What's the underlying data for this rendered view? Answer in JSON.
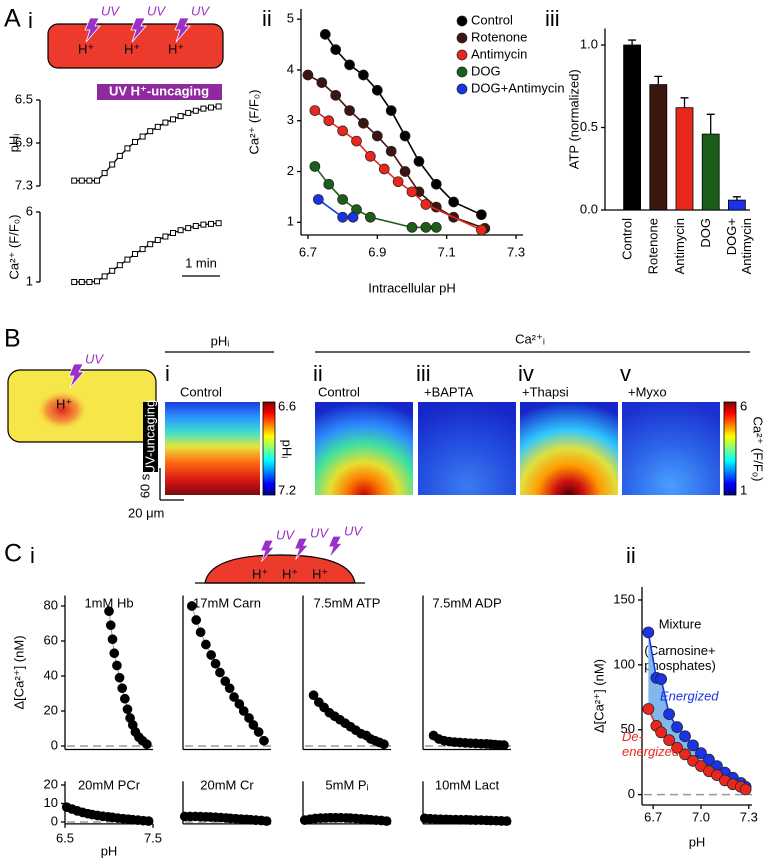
{
  "figure": {
    "panel_labels": [
      "A",
      "B",
      "C"
    ],
    "sub_labels": {
      "a": [
        "i",
        "ii",
        "iii"
      ],
      "b": [
        "i",
        "ii",
        "iii",
        "iv",
        "v"
      ],
      "c": [
        "i",
        "ii"
      ]
    },
    "uv": "UV",
    "h": "H⁺",
    "b_headers": [
      "pHᵢ",
      "Ca²⁺ᵢ"
    ],
    "b_images": [
      "Control",
      "Control",
      "+BAPTA",
      "+Thapsi",
      "+Myxo"
    ],
    "b_colorbars": [
      {
        "top": 6.6,
        "bottom": 7.2,
        "label": "pHᵢ"
      },
      {
        "top": 6,
        "bottom": 1,
        "label": "Ca²⁺ (F/F₀)"
      }
    ],
    "b_scale": {
      "time": "60 s",
      "length": "20 μm",
      "stimulus": "UV-uncaging"
    }
  },
  "chart_data": [
    {
      "type": "line",
      "ylabel": "pHᵢ",
      "annotation": "UV H⁺-uncaging",
      "x": [
        0,
        0.2,
        0.4,
        0.6,
        0.8,
        1.0,
        1.2,
        1.4,
        1.6,
        1.8,
        2.0,
        2.2,
        2.4,
        2.6,
        2.8,
        3.0,
        3.2,
        3.4,
        3.6,
        3.8
      ],
      "series": [
        {
          "color": "#000000",
          "values": [
            7.25,
            7.25,
            7.25,
            7.25,
            7.18,
            7.1,
            7.02,
            6.95,
            6.89,
            6.84,
            6.79,
            6.75,
            6.71,
            6.68,
            6.65,
            6.62,
            6.6,
            6.58,
            6.57,
            6.56
          ]
        }
      ],
      "xlim": [
        -0.9,
        4.1
      ],
      "ylim": [
        7.3,
        6.5
      ],
      "yticks": [
        6.5,
        6.9,
        7.3
      ]
    },
    {
      "type": "line",
      "ylabel": "Ca²⁺ (F/F₀)",
      "scalebar": {
        "value": 1,
        "label": "1 min"
      },
      "x": [
        0,
        0.2,
        0.4,
        0.6,
        0.8,
        1.0,
        1.2,
        1.4,
        1.6,
        1.8,
        2.0,
        2.2,
        2.4,
        2.6,
        2.8,
        3.0,
        3.2,
        3.4,
        3.6,
        3.8
      ],
      "series": [
        {
          "color": "#000000",
          "values": [
            1,
            1,
            1,
            1.05,
            1.4,
            1.8,
            2.2,
            2.6,
            3,
            3.35,
            3.7,
            4,
            4.25,
            4.5,
            4.7,
            4.85,
            5,
            5.1,
            5.15,
            5.2
          ]
        }
      ],
      "xlim": [
        -0.9,
        4.1
      ],
      "ylim": [
        1,
        6
      ],
      "yticks": [
        1,
        6
      ]
    },
    {
      "type": "scatter",
      "line": true,
      "xlabel": "Intracellular pH",
      "ylabel": "Ca²⁺ (F/F₀)",
      "legend": "upper right",
      "xlim": [
        6.68,
        7.32
      ],
      "xticks": [
        6.7,
        6.9,
        7.1,
        7.3
      ],
      "ylim": [
        0.75,
        5.2
      ],
      "yticks": [
        1,
        2,
        3,
        4,
        5
      ],
      "series": [
        {
          "name": "Control",
          "color": "#000000",
          "x": [
            6.75,
            6.78,
            6.82,
            6.86,
            6.9,
            6.94,
            6.98,
            7.02,
            7.07,
            7.12,
            7.2
          ],
          "values": [
            4.7,
            4.4,
            4.1,
            3.9,
            3.6,
            3.2,
            2.7,
            2.2,
            1.75,
            1.4,
            1.15
          ]
        },
        {
          "name": "Rotenone",
          "color": "#3b1510",
          "x": [
            6.7,
            6.74,
            6.78,
            6.82,
            6.86,
            6.9,
            6.94,
            6.98,
            7.02,
            7.07,
            7.12,
            7.21
          ],
          "values": [
            3.9,
            3.75,
            3.5,
            3.2,
            2.95,
            2.7,
            2.4,
            2.0,
            1.6,
            1.3,
            1.1,
            0.88
          ]
        },
        {
          "name": "Antimycin",
          "color": "#e8281e",
          "x": [
            6.72,
            6.76,
            6.8,
            6.84,
            6.88,
            6.92,
            6.96,
            7.0,
            7.04,
            7.2
          ],
          "values": [
            3.2,
            3.0,
            2.8,
            2.6,
            2.3,
            2.05,
            1.8,
            1.6,
            1.35,
            0.85
          ]
        },
        {
          "name": "DOG",
          "color": "#1a5e1a",
          "x": [
            6.72,
            6.76,
            6.8,
            6.84,
            6.88,
            7.0,
            7.04,
            7.07
          ],
          "values": [
            2.1,
            1.75,
            1.45,
            1.25,
            1.1,
            0.9,
            0.9,
            0.9
          ]
        },
        {
          "name": "DOG+Antimycin",
          "color": "#1a33e6",
          "x": [
            6.73,
            6.8,
            6.83
          ],
          "values": [
            1.45,
            1.1,
            1.1
          ]
        }
      ]
    },
    {
      "type": "bar",
      "ylabel": "ATP (normalized)",
      "categories": [
        "Control",
        "Rotenone",
        "Antimycin",
        "DOG",
        "DOG+\nAntimycin"
      ],
      "values": [
        1.0,
        0.76,
        0.62,
        0.46,
        0.06
      ],
      "errors": [
        0.03,
        0.05,
        0.06,
        0.12,
        0.02
      ],
      "colors": [
        "#000000",
        "#3b1510",
        "#e8281e",
        "#1a5e1a",
        "#1a33e6"
      ],
      "ylim": [
        0,
        1.1
      ],
      "yticks": [
        {
          "value": 0,
          "label": "0.0"
        },
        {
          "value": 0.5,
          "label": "0.5"
        },
        {
          "value": 1,
          "label": "1.0"
        }
      ]
    },
    {
      "type": "scatter",
      "line": true,
      "zero_line": true,
      "title": "1mM Hb",
      "ylabel": "Δ[Ca²⁺] (nM)",
      "xlim": [
        6.5,
        7.5
      ],
      "ylim": [
        -2,
        86
      ],
      "yticks": [
        0,
        20,
        40,
        60,
        80
      ],
      "series": [
        {
          "color": "#000000",
          "x": [
            7.0,
            7.02,
            7.04,
            7.06,
            7.09,
            7.12,
            7.15,
            7.18,
            7.21,
            7.24,
            7.27,
            7.3,
            7.34,
            7.38,
            7.43
          ],
          "values": [
            77,
            69,
            61,
            53,
            46,
            39,
            33,
            27,
            21,
            16,
            12,
            8,
            5,
            3,
            1
          ]
        }
      ]
    },
    {
      "type": "scatter",
      "line": true,
      "zero_line": true,
      "title": "17mM Carn",
      "xlim": [
        6.5,
        7.5
      ],
      "ylim": [
        -2,
        86
      ],
      "series": [
        {
          "color": "#000000",
          "x": [
            6.6,
            6.65,
            6.7,
            6.76,
            6.82,
            6.87,
            6.92,
            6.98,
            7.03,
            7.08,
            7.14,
            7.19,
            7.25,
            7.3,
            7.36,
            7.42
          ],
          "values": [
            80,
            72,
            65,
            58,
            52,
            47,
            42,
            37,
            33,
            28,
            24,
            20,
            16,
            12,
            8,
            3
          ]
        }
      ]
    },
    {
      "type": "scatter",
      "line": true,
      "zero_line": true,
      "title": "7.5mM ATP",
      "xlim": [
        6.5,
        7.5
      ],
      "ylim": [
        -2,
        86
      ],
      "series": [
        {
          "color": "#000000",
          "x": [
            6.62,
            6.68,
            6.74,
            6.8,
            6.86,
            6.92,
            6.98,
            7.04,
            7.1,
            7.16,
            7.22,
            7.27,
            7.32,
            7.37,
            7.42
          ],
          "values": [
            29,
            25,
            22,
            19,
            17,
            15,
            13,
            11,
            9,
            7,
            6,
            4,
            3,
            2,
            1
          ]
        }
      ]
    },
    {
      "type": "scatter",
      "line": true,
      "zero_line": true,
      "title": "7.5mM ADP",
      "xlim": [
        6.5,
        7.5
      ],
      "ylim": [
        -2,
        86
      ],
      "series": [
        {
          "color": "#000000",
          "x": [
            6.62,
            6.68,
            6.74,
            6.8,
            6.86,
            6.92,
            6.98,
            7.04,
            7.1,
            7.16,
            7.22,
            7.27,
            7.32,
            7.37,
            7.42
          ],
          "values": [
            6,
            4,
            3,
            2.5,
            2.2,
            2,
            1.8,
            1.6,
            1.5,
            1.3,
            1.2,
            1,
            0.8,
            0.6,
            0.5
          ]
        }
      ]
    },
    {
      "type": "scatter",
      "line": true,
      "zero_line": true,
      "title": "20mM PCr",
      "xlabel": "pH",
      "xlim": [
        6.5,
        7.5
      ],
      "xticks": [
        6.5,
        7.5
      ],
      "ylim": [
        -1,
        22
      ],
      "yticks": [
        0,
        10,
        20
      ],
      "series": [
        {
          "color": "#000000",
          "x": [
            6.52,
            6.58,
            6.64,
            6.7,
            6.76,
            6.81,
            6.87,
            6.93,
            6.99,
            7.04,
            7.1,
            7.16,
            7.22,
            7.27,
            7.33,
            7.39,
            7.45
          ],
          "values": [
            8,
            7,
            6,
            5.2,
            4.5,
            4,
            3.5,
            3.1,
            2.8,
            2.5,
            2.1,
            1.8,
            1.5,
            1.2,
            1,
            0.7,
            0.5
          ]
        }
      ]
    },
    {
      "type": "scatter",
      "line": true,
      "zero_line": true,
      "title": "20mM Cr",
      "xlim": [
        6.5,
        7.5
      ],
      "ylim": [
        -1,
        22
      ],
      "series": [
        {
          "color": "#000000",
          "x": [
            6.52,
            6.58,
            6.64,
            6.7,
            6.76,
            6.81,
            6.87,
            6.93,
            6.99,
            7.04,
            7.1,
            7.16,
            7.22,
            7.27,
            7.33,
            7.39,
            7.45
          ],
          "values": [
            3,
            3,
            3,
            2.9,
            2.8,
            2.7,
            2.6,
            2.4,
            2.2,
            2,
            1.8,
            1.6,
            1.4,
            1.2,
            1,
            0.8,
            0.5
          ]
        }
      ]
    },
    {
      "type": "scatter",
      "line": true,
      "zero_line": true,
      "title": "5mM Pᵢ",
      "xlim": [
        6.5,
        7.5
      ],
      "ylim": [
        -1,
        22
      ],
      "series": [
        {
          "color": "#000000",
          "x": [
            6.52,
            6.58,
            6.64,
            6.7,
            6.76,
            6.81,
            6.87,
            6.93,
            6.99,
            7.04,
            7.1,
            7.16,
            7.22,
            7.27,
            7.33,
            7.39,
            7.45
          ],
          "values": [
            1,
            1.5,
            1.9,
            2.1,
            2.2,
            2.3,
            2.3,
            2.3,
            2.2,
            2.1,
            1.9,
            1.7,
            1.5,
            1.2,
            1,
            0.8,
            0.5
          ]
        }
      ]
    },
    {
      "type": "scatter",
      "line": true,
      "zero_line": true,
      "title": "10mM Lact",
      "xlim": [
        6.5,
        7.5
      ],
      "ylim": [
        -1,
        22
      ],
      "series": [
        {
          "color": "#000000",
          "x": [
            6.52,
            6.58,
            6.64,
            6.7,
            6.76,
            6.81,
            6.87,
            6.93,
            6.99,
            7.04,
            7.1,
            7.16,
            7.22,
            7.27,
            7.33,
            7.39,
            7.45
          ],
          "values": [
            2,
            1.8,
            1.6,
            1.5,
            1.4,
            1.3,
            1.3,
            1.2,
            1.2,
            1.1,
            1,
            1,
            0.9,
            0.8,
            0.7,
            0.6,
            0.5
          ]
        }
      ]
    },
    {
      "type": "scatter",
      "line": true,
      "zero_line": true,
      "fill_between": "#80b8ee",
      "title": "Mixture",
      "subtitle": "(Carnosine+\nphosphates)",
      "xlabel": "pH",
      "ylabel": "Δ[Ca²⁺] (nM)",
      "xlim": [
        6.63,
        7.32
      ],
      "xticks": [
        6.7,
        {
          "value": 7,
          "label": "7.0"
        },
        7.3
      ],
      "ylim": [
        -8,
        160
      ],
      "yticks": [
        0,
        50,
        100,
        150
      ],
      "x": [
        6.67,
        6.72,
        6.75,
        6.8,
        6.85,
        6.9,
        6.95,
        7.0,
        7.05,
        7.1,
        7.15,
        7.2,
        7.25,
        7.28
      ],
      "series": [
        {
          "name": "Energized",
          "color": "#1a33e6",
          "values": [
            125,
            90,
            89,
            62,
            52,
            45,
            38,
            32,
            27,
            22,
            17,
            13,
            9,
            6
          ]
        },
        {
          "name": "De-\nenergized",
          "color": "#e8281e",
          "values": [
            66,
            53,
            48,
            42,
            36,
            31,
            26,
            22,
            18,
            15,
            11,
            8,
            6,
            4
          ]
        }
      ]
    }
  ]
}
